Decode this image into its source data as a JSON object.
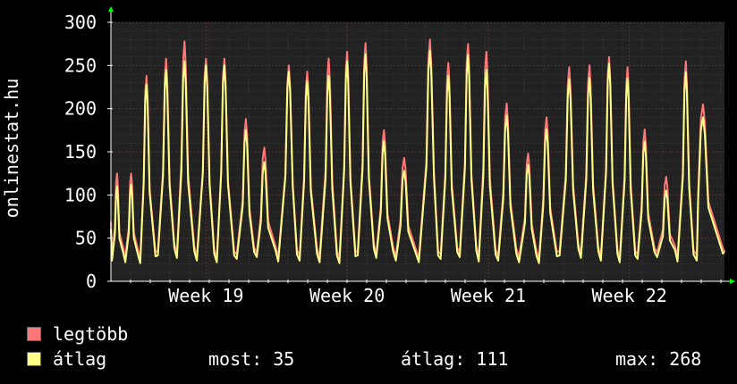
{
  "chart_data": {
    "type": "line",
    "ylabel": "onlinestat.hu",
    "ylim": [
      0,
      300
    ],
    "yticks": [
      0,
      50,
      100,
      150,
      200,
      250,
      300
    ],
    "xlim": [
      0,
      1
    ],
    "xticks": [
      {
        "label": "Week 19",
        "x": 0.155
      },
      {
        "label": "Week 20",
        "x": 0.385
      },
      {
        "label": "Week 21",
        "x": 0.615
      },
      {
        "label": "Week 22",
        "x": 0.845
      }
    ],
    "grid": true,
    "colors": {
      "background": "#000000",
      "plot": "#222222",
      "grid": "#3a3a3a",
      "max": "#ff7777",
      "avg": "#ffff88",
      "axis": "#ffffff",
      "arrow": "#00ff00"
    },
    "series": [
      {
        "name": "legtöbb",
        "color": "#ff7777",
        "peaks": [
          {
            "x": 0.01,
            "y": 125
          },
          {
            "x": 0.033,
            "y": 125
          },
          {
            "x": 0.058,
            "y": 238
          },
          {
            "x": 0.09,
            "y": 258
          },
          {
            "x": 0.12,
            "y": 278
          },
          {
            "x": 0.155,
            "y": 258
          },
          {
            "x": 0.185,
            "y": 258
          },
          {
            "x": 0.22,
            "y": 188
          },
          {
            "x": 0.25,
            "y": 155
          },
          {
            "x": 0.29,
            "y": 250
          },
          {
            "x": 0.32,
            "y": 243
          },
          {
            "x": 0.355,
            "y": 258
          },
          {
            "x": 0.385,
            "y": 266
          },
          {
            "x": 0.415,
            "y": 276
          },
          {
            "x": 0.445,
            "y": 175
          },
          {
            "x": 0.478,
            "y": 143
          },
          {
            "x": 0.52,
            "y": 280
          },
          {
            "x": 0.55,
            "y": 253
          },
          {
            "x": 0.582,
            "y": 275
          },
          {
            "x": 0.612,
            "y": 266
          },
          {
            "x": 0.645,
            "y": 206
          },
          {
            "x": 0.68,
            "y": 148
          },
          {
            "x": 0.71,
            "y": 190
          },
          {
            "x": 0.747,
            "y": 248
          },
          {
            "x": 0.78,
            "y": 250
          },
          {
            "x": 0.812,
            "y": 260
          },
          {
            "x": 0.842,
            "y": 248
          },
          {
            "x": 0.87,
            "y": 176
          },
          {
            "x": 0.905,
            "y": 121
          },
          {
            "x": 0.937,
            "y": 255
          },
          {
            "x": 0.965,
            "y": 205
          }
        ]
      },
      {
        "name": "átlag",
        "color": "#ffff88",
        "peaks": [
          {
            "x": 0.01,
            "y": 110
          },
          {
            "x": 0.033,
            "y": 112
          },
          {
            "x": 0.058,
            "y": 228
          },
          {
            "x": 0.09,
            "y": 245
          },
          {
            "x": 0.12,
            "y": 255
          },
          {
            "x": 0.155,
            "y": 250
          },
          {
            "x": 0.185,
            "y": 250
          },
          {
            "x": 0.22,
            "y": 175
          },
          {
            "x": 0.25,
            "y": 138
          },
          {
            "x": 0.29,
            "y": 243
          },
          {
            "x": 0.32,
            "y": 232
          },
          {
            "x": 0.355,
            "y": 238
          },
          {
            "x": 0.385,
            "y": 255
          },
          {
            "x": 0.415,
            "y": 263
          },
          {
            "x": 0.445,
            "y": 162
          },
          {
            "x": 0.478,
            "y": 128
          },
          {
            "x": 0.52,
            "y": 267
          },
          {
            "x": 0.55,
            "y": 238
          },
          {
            "x": 0.582,
            "y": 262
          },
          {
            "x": 0.612,
            "y": 245
          },
          {
            "x": 0.645,
            "y": 192
          },
          {
            "x": 0.68,
            "y": 135
          },
          {
            "x": 0.71,
            "y": 176
          },
          {
            "x": 0.747,
            "y": 234
          },
          {
            "x": 0.78,
            "y": 235
          },
          {
            "x": 0.812,
            "y": 252
          },
          {
            "x": 0.842,
            "y": 235
          },
          {
            "x": 0.87,
            "y": 162
          },
          {
            "x": 0.905,
            "y": 105
          },
          {
            "x": 0.937,
            "y": 242
          },
          {
            "x": 0.965,
            "y": 190
          }
        ]
      }
    ]
  },
  "legend": {
    "max_label": "legtöbb",
    "avg_label": "átlag",
    "most": "most: 35",
    "atlag": "átlag: 111",
    "max": "max: 268"
  }
}
